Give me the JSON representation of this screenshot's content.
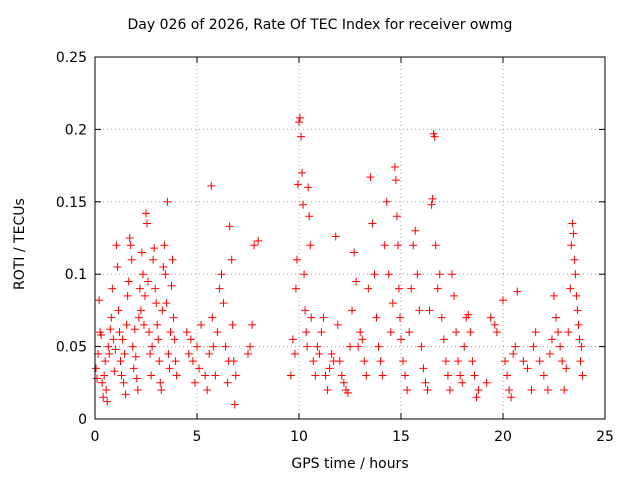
{
  "chart_data": {
    "type": "scatter",
    "title": "Day 026 of 2026, Rate Of TEC Index for receiver owmg",
    "xlabel": "GPS time / hours",
    "ylabel": "ROTI / TECUs",
    "xlim": [
      0,
      25
    ],
    "ylim": [
      0,
      0.25
    ],
    "x_ticks": [
      "0",
      "5",
      "10",
      "15",
      "20",
      "25"
    ],
    "y_ticks": [
      "0",
      "0.05",
      "0.1",
      "0.15",
      "0.2",
      "0.25"
    ],
    "grid": true,
    "marker": "+",
    "color": "#ff0000",
    "series": [
      {
        "points": [
          [
            0.05,
            0.035
          ],
          [
            0.1,
            0.028
          ],
          [
            0.15,
            0.045
          ],
          [
            0.2,
            0.082
          ],
          [
            0.25,
            0.06
          ],
          [
            0.3,
            0.058
          ],
          [
            0.35,
            0.025
          ],
          [
            0.4,
            0.015
          ],
          [
            0.45,
            0.03
          ],
          [
            0.5,
            0.04
          ],
          [
            0.55,
            0.02
          ],
          [
            0.6,
            0.012
          ],
          [
            0.65,
            0.05
          ],
          [
            0.7,
            0.045
          ],
          [
            0.75,
            0.062
          ],
          [
            0.8,
            0.07
          ],
          [
            0.85,
            0.09
          ],
          [
            0.9,
            0.055
          ],
          [
            0.95,
            0.033
          ],
          [
            1.0,
            0.048
          ],
          [
            1.05,
            0.12
          ],
          [
            1.1,
            0.105
          ],
          [
            1.15,
            0.075
          ],
          [
            1.2,
            0.06
          ],
          [
            1.25,
            0.04
          ],
          [
            1.3,
            0.03
          ],
          [
            1.35,
            0.055
          ],
          [
            1.4,
            0.025
          ],
          [
            1.45,
            0.045
          ],
          [
            1.5,
            0.017
          ],
          [
            1.55,
            0.065
          ],
          [
            1.6,
            0.085
          ],
          [
            1.65,
            0.095
          ],
          [
            1.7,
            0.125
          ],
          [
            1.75,
            0.12
          ],
          [
            1.8,
            0.11
          ],
          [
            1.85,
            0.05
          ],
          [
            1.9,
            0.035
          ],
          [
            1.95,
            0.062
          ],
          [
            2.0,
            0.043
          ],
          [
            2.05,
            0.028
          ],
          [
            2.1,
            0.02
          ],
          [
            2.15,
            0.07
          ],
          [
            2.2,
            0.09
          ],
          [
            2.25,
            0.075
          ],
          [
            2.3,
            0.115
          ],
          [
            2.35,
            0.1
          ],
          [
            2.4,
            0.065
          ],
          [
            2.45,
            0.085
          ],
          [
            2.5,
            0.142
          ],
          [
            2.55,
            0.135
          ],
          [
            2.6,
            0.095
          ],
          [
            2.65,
            0.06
          ],
          [
            2.7,
            0.045
          ],
          [
            2.75,
            0.03
          ],
          [
            2.8,
            0.05
          ],
          [
            2.85,
            0.11
          ],
          [
            2.9,
            0.118
          ],
          [
            2.95,
            0.09
          ],
          [
            3.0,
            0.08
          ],
          [
            3.05,
            0.065
          ],
          [
            3.1,
            0.055
          ],
          [
            3.15,
            0.04
          ],
          [
            3.2,
            0.025
          ],
          [
            3.25,
            0.02
          ],
          [
            3.3,
            0.075
          ],
          [
            3.35,
            0.105
          ],
          [
            3.4,
            0.12
          ],
          [
            3.45,
            0.1
          ],
          [
            3.5,
            0.08
          ],
          [
            3.55,
            0.15
          ],
          [
            3.6,
            0.045
          ],
          [
            3.65,
            0.035
          ],
          [
            3.7,
            0.06
          ],
          [
            3.75,
            0.092
          ],
          [
            3.8,
            0.11
          ],
          [
            3.85,
            0.07
          ],
          [
            3.9,
            0.055
          ],
          [
            3.95,
            0.04
          ],
          [
            4.0,
            0.03
          ],
          [
            4.5,
            0.06
          ],
          [
            4.6,
            0.045
          ],
          [
            4.7,
            0.055
          ],
          [
            4.8,
            0.04
          ],
          [
            4.9,
            0.025
          ],
          [
            5.0,
            0.05
          ],
          [
            5.1,
            0.035
          ],
          [
            5.2,
            0.065
          ],
          [
            5.4,
            0.03
          ],
          [
            5.5,
            0.02
          ],
          [
            5.6,
            0.045
          ],
          [
            5.7,
            0.161
          ],
          [
            5.75,
            0.07
          ],
          [
            5.8,
            0.05
          ],
          [
            5.9,
            0.03
          ],
          [
            6.0,
            0.06
          ],
          [
            6.1,
            0.09
          ],
          [
            6.2,
            0.1
          ],
          [
            6.3,
            0.08
          ],
          [
            6.4,
            0.05
          ],
          [
            6.5,
            0.025
          ],
          [
            6.55,
            0.04
          ],
          [
            6.6,
            0.133
          ],
          [
            6.7,
            0.11
          ],
          [
            6.75,
            0.065
          ],
          [
            6.8,
            0.04
          ],
          [
            6.85,
            0.01
          ],
          [
            6.9,
            0.03
          ],
          [
            7.5,
            0.045
          ],
          [
            7.6,
            0.05
          ],
          [
            7.7,
            0.065
          ],
          [
            7.8,
            0.12
          ],
          [
            8.0,
            0.123
          ],
          [
            9.6,
            0.03
          ],
          [
            9.7,
            0.055
          ],
          [
            9.8,
            0.045
          ],
          [
            9.85,
            0.09
          ],
          [
            9.9,
            0.11
          ],
          [
            9.95,
            0.162
          ],
          [
            10.0,
            0.205
          ],
          [
            10.05,
            0.208
          ],
          [
            10.1,
            0.195
          ],
          [
            10.15,
            0.17
          ],
          [
            10.2,
            0.148
          ],
          [
            10.25,
            0.1
          ],
          [
            10.3,
            0.075
          ],
          [
            10.35,
            0.06
          ],
          [
            10.4,
            0.05
          ],
          [
            10.45,
            0.16
          ],
          [
            10.5,
            0.14
          ],
          [
            10.55,
            0.12
          ],
          [
            10.6,
            0.07
          ],
          [
            10.7,
            0.04
          ],
          [
            10.8,
            0.03
          ],
          [
            10.9,
            0.05
          ],
          [
            11.0,
            0.045
          ],
          [
            11.1,
            0.06
          ],
          [
            11.2,
            0.07
          ],
          [
            11.3,
            0.03
          ],
          [
            11.4,
            0.02
          ],
          [
            11.5,
            0.035
          ],
          [
            11.6,
            0.045
          ],
          [
            11.7,
            0.04
          ],
          [
            11.8,
            0.126
          ],
          [
            11.9,
            0.065
          ],
          [
            12.0,
            0.04
          ],
          [
            12.1,
            0.03
          ],
          [
            12.2,
            0.025
          ],
          [
            12.3,
            0.02
          ],
          [
            12.4,
            0.018
          ],
          [
            12.5,
            0.05
          ],
          [
            12.6,
            0.075
          ],
          [
            12.7,
            0.115
          ],
          [
            12.8,
            0.095
          ],
          [
            12.9,
            0.05
          ],
          [
            13.0,
            0.06
          ],
          [
            13.1,
            0.055
          ],
          [
            13.2,
            0.04
          ],
          [
            13.3,
            0.03
          ],
          [
            13.4,
            0.09
          ],
          [
            13.5,
            0.167
          ],
          [
            13.6,
            0.135
          ],
          [
            13.7,
            0.1
          ],
          [
            13.8,
            0.07
          ],
          [
            13.9,
            0.05
          ],
          [
            14.0,
            0.04
          ],
          [
            14.1,
            0.03
          ],
          [
            14.2,
            0.12
          ],
          [
            14.3,
            0.15
          ],
          [
            14.4,
            0.1
          ],
          [
            14.5,
            0.06
          ],
          [
            14.6,
            0.08
          ],
          [
            14.7,
            0.174
          ],
          [
            14.75,
            0.165
          ],
          [
            14.8,
            0.14
          ],
          [
            14.85,
            0.12
          ],
          [
            14.9,
            0.09
          ],
          [
            14.95,
            0.07
          ],
          [
            15.0,
            0.055
          ],
          [
            15.1,
            0.04
          ],
          [
            15.2,
            0.03
          ],
          [
            15.3,
            0.02
          ],
          [
            15.4,
            0.06
          ],
          [
            15.5,
            0.09
          ],
          [
            15.6,
            0.12
          ],
          [
            15.7,
            0.13
          ],
          [
            15.8,
            0.1
          ],
          [
            15.9,
            0.075
          ],
          [
            16.0,
            0.05
          ],
          [
            16.1,
            0.035
          ],
          [
            16.2,
            0.025
          ],
          [
            16.3,
            0.02
          ],
          [
            16.4,
            0.075
          ],
          [
            16.5,
            0.148
          ],
          [
            16.55,
            0.152
          ],
          [
            16.6,
            0.197
          ],
          [
            16.65,
            0.195
          ],
          [
            16.7,
            0.12
          ],
          [
            16.8,
            0.09
          ],
          [
            16.9,
            0.1
          ],
          [
            17.0,
            0.07
          ],
          [
            17.1,
            0.055
          ],
          [
            17.2,
            0.04
          ],
          [
            17.3,
            0.03
          ],
          [
            17.4,
            0.02
          ],
          [
            17.5,
            0.1
          ],
          [
            17.6,
            0.085
          ],
          [
            17.7,
            0.06
          ],
          [
            17.8,
            0.04
          ],
          [
            17.9,
            0.03
          ],
          [
            18.0,
            0.025
          ],
          [
            18.1,
            0.05
          ],
          [
            18.2,
            0.07
          ],
          [
            18.3,
            0.072
          ],
          [
            18.4,
            0.06
          ],
          [
            18.5,
            0.04
          ],
          [
            18.6,
            0.03
          ],
          [
            18.7,
            0.015
          ],
          [
            18.8,
            0.02
          ],
          [
            19.2,
            0.025
          ],
          [
            19.4,
            0.07
          ],
          [
            19.6,
            0.065
          ],
          [
            19.7,
            0.06
          ],
          [
            20.0,
            0.082
          ],
          [
            20.1,
            0.04
          ],
          [
            20.2,
            0.03
          ],
          [
            20.3,
            0.02
          ],
          [
            20.4,
            0.015
          ],
          [
            20.5,
            0.045
          ],
          [
            20.6,
            0.05
          ],
          [
            20.7,
            0.088
          ],
          [
            21.0,
            0.04
          ],
          [
            21.2,
            0.035
          ],
          [
            21.4,
            0.02
          ],
          [
            21.5,
            0.05
          ],
          [
            21.6,
            0.06
          ],
          [
            21.8,
            0.04
          ],
          [
            22.0,
            0.03
          ],
          [
            22.2,
            0.02
          ],
          [
            22.3,
            0.045
          ],
          [
            22.4,
            0.055
          ],
          [
            22.5,
            0.085
          ],
          [
            22.6,
            0.07
          ],
          [
            22.7,
            0.06
          ],
          [
            22.8,
            0.05
          ],
          [
            22.9,
            0.04
          ],
          [
            23.0,
            0.02
          ],
          [
            23.1,
            0.035
          ],
          [
            23.2,
            0.06
          ],
          [
            23.3,
            0.09
          ],
          [
            23.35,
            0.12
          ],
          [
            23.4,
            0.135
          ],
          [
            23.45,
            0.128
          ],
          [
            23.5,
            0.11
          ],
          [
            23.55,
            0.1
          ],
          [
            23.6,
            0.085
          ],
          [
            23.65,
            0.075
          ],
          [
            23.7,
            0.065
          ],
          [
            23.75,
            0.055
          ],
          [
            23.8,
            0.04
          ],
          [
            23.85,
            0.05
          ],
          [
            23.9,
            0.03
          ]
        ]
      }
    ]
  }
}
